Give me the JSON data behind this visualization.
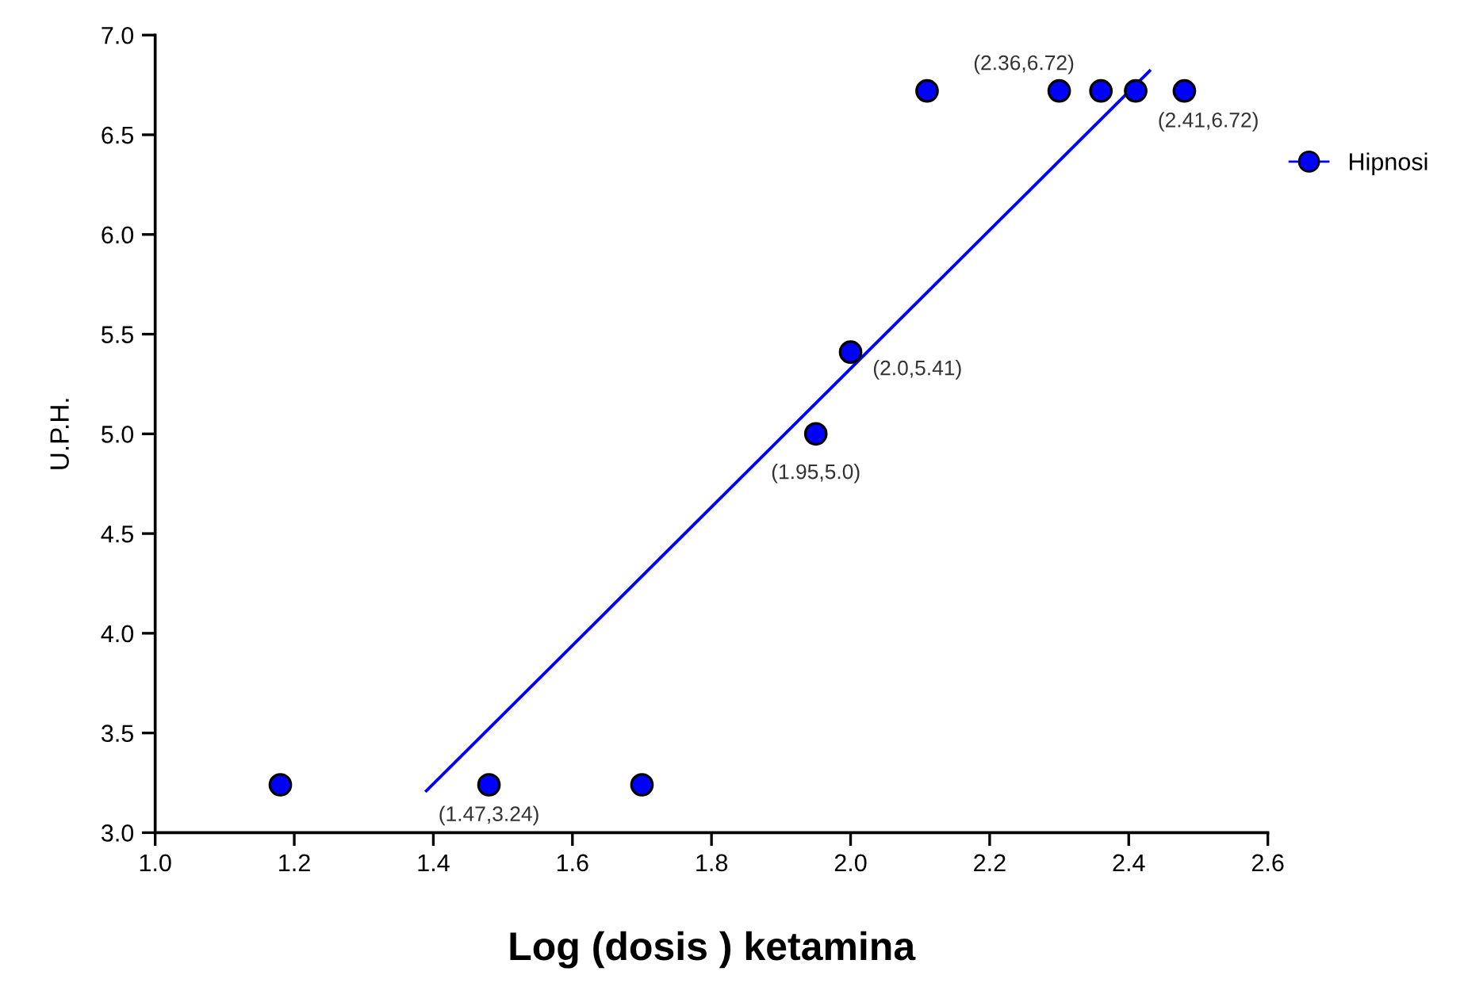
{
  "chart_data": {
    "type": "scatter",
    "xlabel": "Log (dosis ) ketamina",
    "ylabel": "U.P.H.",
    "xlim": [
      1.0,
      2.6
    ],
    "xticks": [
      {
        "value": 1.0,
        "label": "1.0"
      },
      1.2,
      1.4,
      1.6,
      1.8,
      {
        "value": 2.0,
        "label": "2.0"
      },
      2.2,
      2.4,
      2.6
    ],
    "ylim": [
      3.0,
      7.0
    ],
    "yticks": [
      {
        "value": 3.0,
        "label": "3.0"
      },
      3.5,
      {
        "value": 4.0,
        "label": "4.0"
      },
      4.5,
      {
        "value": 5.0,
        "label": "5.0"
      },
      5.5,
      {
        "value": 6.0,
        "label": "6.0"
      },
      6.5,
      {
        "value": 7.0,
        "label": "7.0"
      }
    ],
    "grid": false,
    "legend": "right",
    "series": [
      {
        "name": "Hipnosi",
        "marker": "circle",
        "color": "#0000ff",
        "x": [
          1.18,
          1.48,
          1.7,
          1.95,
          2.0,
          2.11,
          2.3,
          2.36,
          2.41,
          2.48
        ],
        "values": [
          3.24,
          3.24,
          3.24,
          5.0,
          5.41,
          6.72,
          6.72,
          6.72,
          6.72,
          6.72
        ]
      },
      {
        "type": "line",
        "color": "#0000ff",
        "line_style": "solid",
        "x": [
          1.39,
          2.43
        ],
        "values": [
          3.21,
          6.82
        ]
      }
    ],
    "annotations": [
      {
        "text": "(1.47,3.24)",
        "x": 1.48,
        "y": 3.24
      },
      {
        "text": "(1.95,5.0)",
        "x": 1.95,
        "y": 5.0
      },
      {
        "text": "(2.0,5.41)",
        "x": 2.0,
        "y": 5.41
      },
      {
        "text": "(2.36,6.72)",
        "x": 2.36,
        "y": 6.72
      },
      {
        "text": "(2.41,6.72)",
        "x": 2.41,
        "y": 6.72
      }
    ]
  }
}
